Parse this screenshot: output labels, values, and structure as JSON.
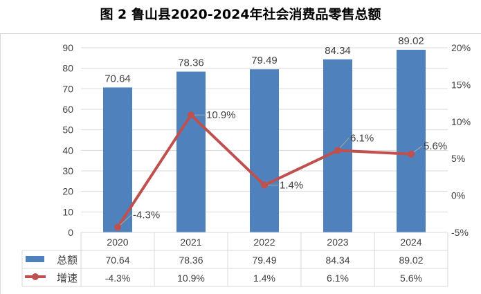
{
  "title": "图 2 鲁山县2020-2024年社会消费品零售总额",
  "chart_data": {
    "type": "bar+line",
    "title": "图 2 鲁山县2020-2024年社会消费品零售总额",
    "categories": [
      "2020",
      "2021",
      "2022",
      "2023",
      "2024"
    ],
    "series": [
      {
        "name": "总额",
        "type": "bar",
        "axis": "left",
        "values": [
          70.64,
          78.36,
          79.49,
          84.34,
          89.02
        ],
        "labels": [
          "70.64",
          "78.36",
          "79.49",
          "84.34",
          "89.02"
        ],
        "color": "#4F81BD"
      },
      {
        "name": "增速",
        "type": "line",
        "axis": "right",
        "values": [
          -4.3,
          10.9,
          1.4,
          6.1,
          5.6
        ],
        "labels": [
          "-4.3%",
          "10.9%",
          "1.4%",
          "6.1%",
          "5.6%"
        ],
        "color": "#C0504D"
      }
    ],
    "ylim": [
      0,
      90
    ],
    "yticks": [
      "0",
      "10",
      "20",
      "30",
      "40",
      "50",
      "60",
      "70",
      "80",
      "90"
    ],
    "y2lim": [
      -5,
      20
    ],
    "y2ticks": [
      "-5%",
      "0%",
      "5%",
      "10%",
      "15%",
      "20%"
    ],
    "grid": true,
    "legend": "data-table"
  }
}
